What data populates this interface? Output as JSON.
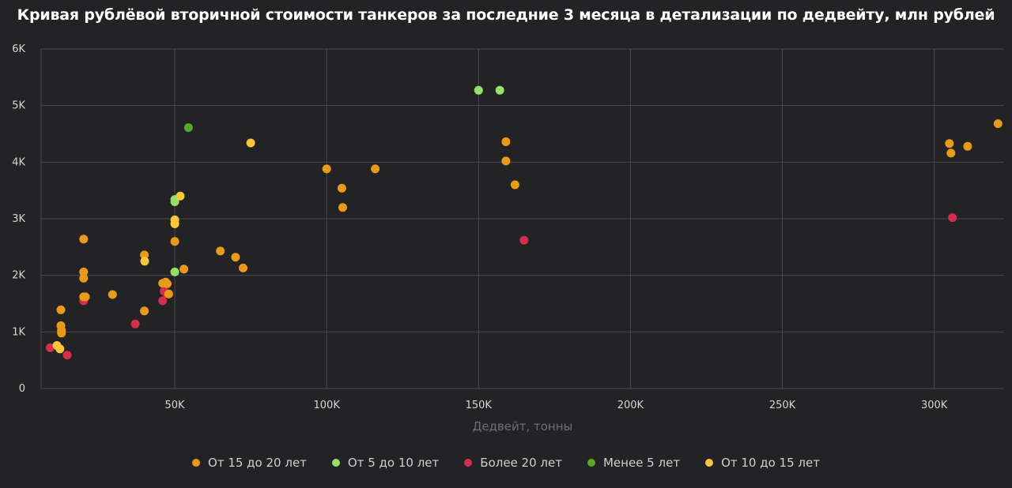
{
  "chart_data": {
    "type": "scatter",
    "title": "Кривая рублёвой вторичной стоимости танкеров за последние 3 месяца в детализации по дедвейту, млн рублей",
    "xlabel": "Дедвейт, тонны",
    "ylabel": "",
    "xlim": [
      6000,
      323000
    ],
    "ylim": [
      0,
      6000
    ],
    "x_ticks": [
      50000,
      100000,
      150000,
      200000,
      250000,
      300000
    ],
    "x_tick_labels": [
      "50K",
      "100K",
      "150K",
      "200K",
      "250K",
      "300K"
    ],
    "y_ticks": [
      0,
      1000,
      2000,
      3000,
      4000,
      5000,
      6000
    ],
    "y_tick_labels": [
      "0",
      "1K",
      "2K",
      "3K",
      "4K",
      "5K",
      "6K"
    ],
    "grid": true,
    "legend_position": "bottom",
    "series": [
      {
        "name": "От 15 до 20 лет",
        "color": "#e89b1a",
        "points": [
          [
            12500,
            1390
          ],
          [
            12500,
            1110
          ],
          [
            12700,
            1030
          ],
          [
            12700,
            980
          ],
          [
            20000,
            2640
          ],
          [
            20000,
            2060
          ],
          [
            20000,
            1950
          ],
          [
            20000,
            1620
          ],
          [
            20600,
            1620
          ],
          [
            29500,
            1660
          ],
          [
            40000,
            2360
          ],
          [
            40000,
            1370
          ],
          [
            46000,
            1860
          ],
          [
            47000,
            1880
          ],
          [
            47500,
            1850
          ],
          [
            48000,
            1670
          ],
          [
            50000,
            2600
          ],
          [
            53000,
            2110
          ],
          [
            65000,
            2430
          ],
          [
            70000,
            2320
          ],
          [
            72500,
            2130
          ],
          [
            100000,
            3880
          ],
          [
            105000,
            3540
          ],
          [
            105300,
            3200
          ],
          [
            116000,
            3880
          ],
          [
            159000,
            4360
          ],
          [
            159000,
            4020
          ],
          [
            162000,
            3600
          ],
          [
            305000,
            4330
          ],
          [
            305500,
            4160
          ],
          [
            311000,
            4280
          ],
          [
            321000,
            4680
          ]
        ]
      },
      {
        "name": "От 5 до 10 лет",
        "color": "#96e06a",
        "points": [
          [
            50000,
            3340
          ],
          [
            50000,
            3300
          ],
          [
            50000,
            2060
          ],
          [
            150000,
            5270
          ],
          [
            157000,
            5270
          ]
        ]
      },
      {
        "name": "Более 20 лет",
        "color": "#d0304c",
        "points": [
          [
            9000,
            720
          ],
          [
            14600,
            590
          ],
          [
            20000,
            1550
          ],
          [
            37000,
            1140
          ],
          [
            46000,
            1550
          ],
          [
            46500,
            1720
          ],
          [
            47300,
            1680
          ],
          [
            165000,
            2620
          ],
          [
            306000,
            3020
          ]
        ]
      },
      {
        "name": "Менее 5 лет",
        "color": "#58a82a",
        "points": [
          [
            54500,
            4610
          ]
        ]
      },
      {
        "name": "От 10 до 15 лет",
        "color": "#f7c63c",
        "points": [
          [
            11200,
            760
          ],
          [
            12200,
            700
          ],
          [
            40100,
            2250
          ],
          [
            50000,
            2980
          ],
          [
            50000,
            2910
          ],
          [
            51800,
            3400
          ],
          [
            75000,
            4340
          ]
        ]
      }
    ]
  },
  "menu": {
    "more_label": "…"
  }
}
